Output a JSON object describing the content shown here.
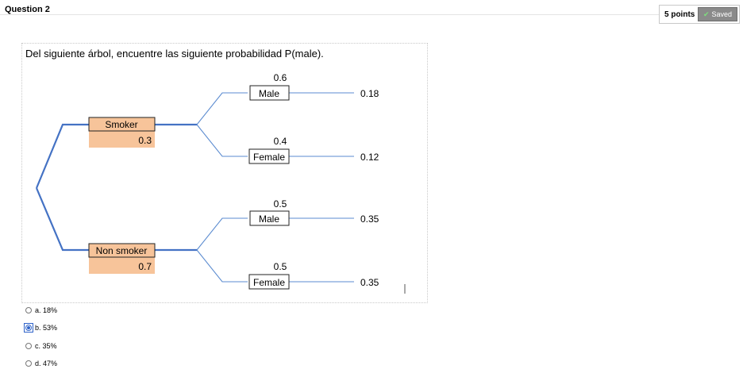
{
  "header": {
    "question_title": "Question 2",
    "points_label": "5 points",
    "saved_label": "Saved"
  },
  "question": {
    "text": "Del siguiente árbol, encuentre las siguiente probabilidad P(male)."
  },
  "tree": {
    "branches": [
      {
        "label": "Smoker",
        "prob": "0.3",
        "children": [
          {
            "label": "Male",
            "prob": "0.6",
            "joint": "0.18"
          },
          {
            "label": "Female",
            "prob": "0.4",
            "joint": "0.12"
          }
        ]
      },
      {
        "label": "Non smoker",
        "prob": "0.7",
        "children": [
          {
            "label": "Male",
            "prob": "0.5",
            "joint": "0.35"
          },
          {
            "label": "Female",
            "prob": "0.5",
            "joint": "0.35"
          }
        ]
      }
    ],
    "colors": {
      "line": "#5b8bd0",
      "thick_line": "#4472c4",
      "leaf_fill": "#f7c49a"
    }
  },
  "answers": [
    {
      "text": "a. 18%",
      "selected": false
    },
    {
      "text": "b. 53%",
      "selected": true
    },
    {
      "text": "c. 35%",
      "selected": false
    },
    {
      "text": "d. 47%",
      "selected": false
    }
  ]
}
